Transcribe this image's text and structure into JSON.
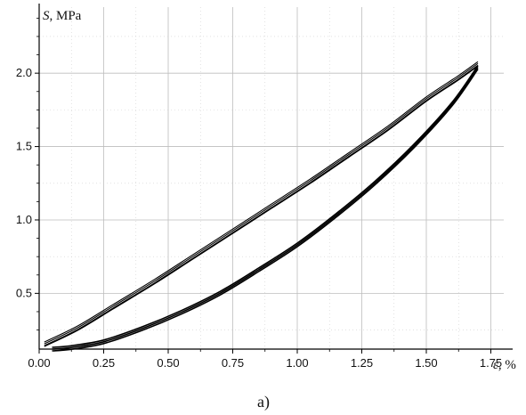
{
  "chart_data": {
    "type": "line",
    "title": "",
    "xlabel_symbol": "ε",
    "xlabel_unit": ", %",
    "ylabel_symbol": "S",
    "ylabel_unit": ", MPa",
    "caption": "a)",
    "xlim": [
      0.0,
      1.8
    ],
    "ylim": [
      0.12,
      2.45
    ],
    "x_ticks": [
      0.0,
      0.25,
      0.5,
      0.75,
      1.0,
      1.25,
      1.5,
      1.75
    ],
    "x_tick_labels": [
      "0.00",
      "0.25",
      "0.50",
      "0.75",
      "1.00",
      "1.25",
      "1.50",
      "1.75"
    ],
    "y_ticks": [
      0.5,
      1.0,
      1.5,
      2.0
    ],
    "y_tick_labels": [
      "0.5",
      "1.0",
      "1.5",
      "2.0"
    ],
    "grid": true,
    "series": [
      {
        "x": [
          0.02,
          0.15,
          0.3,
          0.45,
          0.6,
          0.75,
          0.9,
          1.05,
          1.2,
          1.35,
          1.5,
          1.62,
          1.7
        ],
        "y": [
          0.15,
          0.26,
          0.42,
          0.58,
          0.75,
          0.92,
          1.09,
          1.26,
          1.44,
          1.62,
          1.82,
          1.96,
          2.06
        ]
      },
      {
        "x": [
          1.7,
          1.6,
          1.45,
          1.3,
          1.15,
          1.0,
          0.85,
          0.7,
          0.55,
          0.4,
          0.25,
          0.12,
          0.05
        ],
        "y": [
          2.04,
          1.79,
          1.5,
          1.25,
          1.03,
          0.83,
          0.66,
          0.5,
          0.37,
          0.26,
          0.17,
          0.13,
          0.12
        ]
      }
    ]
  }
}
